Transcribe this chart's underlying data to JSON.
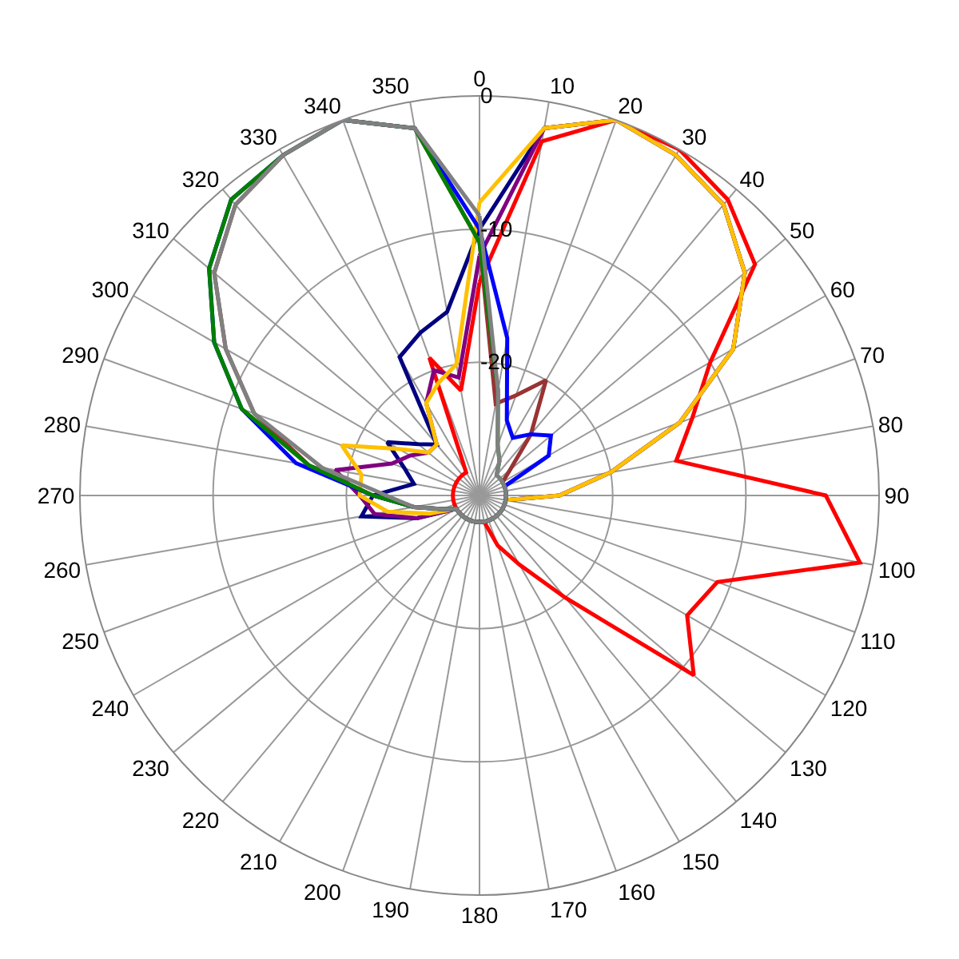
{
  "chart_data": {
    "type": "radar",
    "categories": [
      "0",
      "10",
      "20",
      "30",
      "40",
      "50",
      "60",
      "70",
      "80",
      "90",
      "100",
      "110",
      "120",
      "130",
      "140",
      "150",
      "160",
      "170",
      "180",
      "190",
      "200",
      "210",
      "220",
      "230",
      "240",
      "250",
      "260",
      "270",
      "280",
      "290",
      "300",
      "310",
      "320",
      "330",
      "340",
      "350"
    ],
    "ylim": [
      -30,
      0
    ],
    "yticks": [
      -20,
      -10,
      0
    ],
    "grid": true,
    "marker": "none",
    "line_style": "solid",
    "series": [
      {
        "color": "#ff0000",
        "values": [
          -14,
          -3,
          0,
          0,
          -1,
          -3,
          -10,
          -13,
          -15,
          -4,
          -1,
          -11,
          -12,
          -9,
          -20,
          -24,
          -26,
          -28,
          -28,
          -28,
          -28,
          -28,
          -28,
          -28,
          -28,
          -28,
          -28,
          -28,
          -28,
          -28,
          -28,
          -28,
          -28,
          -28,
          -19,
          -22
        ]
      },
      {
        "color": "#000080",
        "values": [
          -10,
          -2,
          0,
          -0.5,
          -1.5,
          -4,
          -8,
          -14,
          -20,
          -24,
          -28,
          -28,
          -28,
          -28,
          -28,
          -28,
          -28,
          -28,
          -28,
          -28,
          -28,
          -28,
          -28,
          -28,
          -28,
          -25,
          -21,
          -22,
          -25,
          -24,
          -22,
          -24,
          -25,
          -18,
          -17,
          -16
        ]
      },
      {
        "color": "#800080",
        "values": [
          -12,
          -2,
          0,
          -0.5,
          -1.5,
          -4,
          -8,
          -14,
          -20,
          -24,
          -28,
          -28,
          -28,
          -28,
          -28,
          -28,
          -28,
          -28,
          -28,
          -28,
          -28,
          -28,
          -28,
          -28,
          -28,
          -25,
          -22,
          -21,
          -19,
          -23,
          -24,
          -25,
          -25,
          -22,
          -20,
          -21
        ]
      },
      {
        "color": "#ffc000",
        "values": [
          -8,
          -2,
          0,
          -0.5,
          -1.5,
          -4,
          -8,
          -14,
          -20,
          -24,
          -28,
          -28,
          -28,
          -28,
          -28,
          -28,
          -28,
          -28,
          -28,
          -28,
          -28,
          -28,
          -28,
          -28,
          -28,
          -26,
          -23,
          -21,
          -21,
          -19,
          -23,
          -25,
          -25,
          -22,
          -21,
          -20
        ]
      },
      {
        "color": "#993333",
        "values": [
          -11,
          -23,
          -22,
          -20,
          -24,
          -27,
          -28,
          -28,
          -28,
          -28,
          -28,
          -28,
          -28,
          -28,
          -28,
          -28,
          -28,
          -28,
          -28,
          -28,
          -28,
          -28,
          -28,
          -28,
          -28,
          -27,
          -25,
          -22,
          -17,
          -12,
          -8,
          -4,
          -1.5,
          -0.5,
          0,
          -2
        ]
      },
      {
        "color": "#0000ff",
        "values": [
          -10,
          -18,
          -24,
          -25,
          -24,
          -23,
          -24,
          -28,
          -28,
          -28,
          -28,
          -28,
          -28,
          -28,
          -28,
          -28,
          -28,
          -28,
          -28,
          -28,
          -28,
          -28,
          -28,
          -28,
          -28,
          -27,
          -25,
          -22,
          -16,
          -11,
          -7,
          -3.5,
          -1,
          -0.5,
          0,
          -2
        ]
      },
      {
        "color": "#008000",
        "values": [
          -11,
          -22,
          -26,
          -27,
          -28,
          -28,
          -28,
          -28,
          -28,
          -28,
          -28,
          -28,
          -28,
          -28,
          -28,
          -28,
          -28,
          -28,
          -28,
          -28,
          -28,
          -28,
          -28,
          -28,
          -28,
          -27,
          -25,
          -22,
          -17,
          -11,
          -7,
          -3.5,
          -1,
          -0.5,
          0,
          -2
        ]
      },
      {
        "color": "#808080",
        "values": [
          -9,
          -22,
          -26,
          -27,
          -28,
          -28,
          -28,
          -28,
          -28,
          -28,
          -28,
          -28,
          -28,
          -28,
          -28,
          -28,
          -28,
          -28,
          -28,
          -28,
          -28,
          -28,
          -28,
          -28,
          -28,
          -27,
          -25,
          -23,
          -18,
          -12,
          -8,
          -4,
          -1.5,
          -0.5,
          0,
          -2
        ]
      }
    ]
  }
}
